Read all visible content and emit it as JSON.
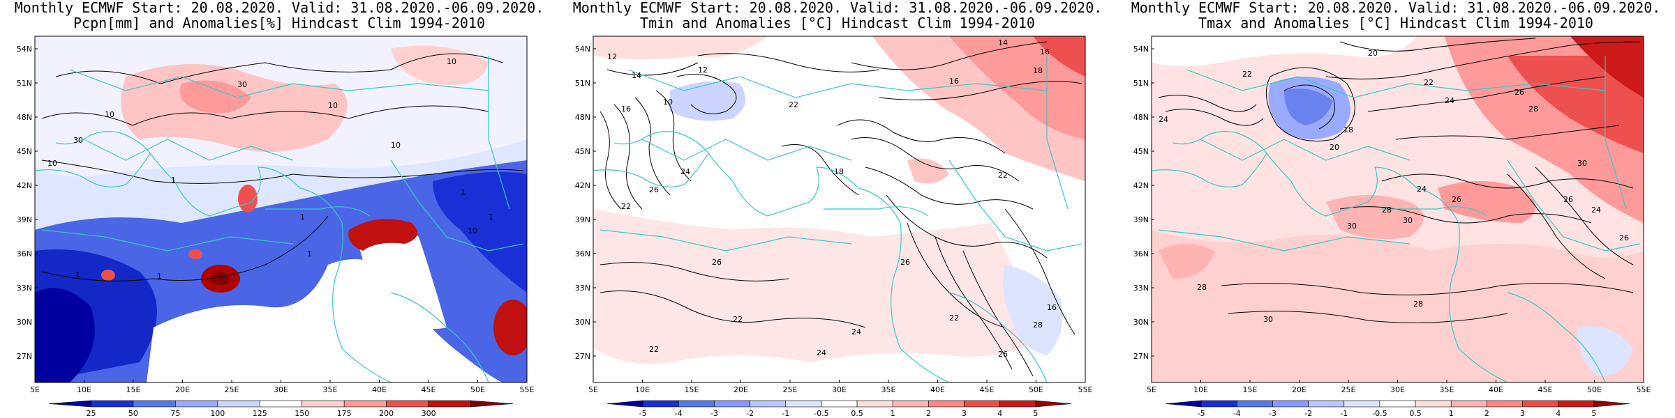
{
  "panels": [
    {
      "title_line1": "Monthly ECMWF Start: 20.08.2020. Valid: 31.08.2020.-06.09.2020.",
      "title_line2": "Pcpn[mm] and Anomalies[%] Hindcast Clim 1994-2010",
      "colorbar_labels": [
        "25",
        "50",
        "75",
        "100",
        "125",
        "150",
        "175",
        "200",
        "300"
      ],
      "colorbar_colors": [
        "#0000a0",
        "#1a2fd6",
        "#5577ee",
        "#99aaff",
        "#ccd6ff",
        "#ffffff",
        "#ffd0d0",
        "#ff9a9a",
        "#ee5050",
        "#c01010",
        "#800000"
      ],
      "contour_labels": [
        "10",
        "30",
        "10",
        "30",
        "10",
        "10",
        "10",
        "1",
        "1",
        "1",
        "1",
        "10",
        "1",
        "1",
        "1"
      ]
    },
    {
      "title_line1": "Monthly ECMWF Start: 20.08.2020. Valid: 31.08.2020.-06.09.2020.",
      "title_line2": "Tmin and Anomalies [°C] Hindcast Clim 1994-2010",
      "colorbar_labels": [
        "-5",
        "-4",
        "-3",
        "-2",
        "-1",
        "-0.5",
        "0.5",
        "1",
        "2",
        "3",
        "4",
        "5"
      ],
      "colorbar_colors": [
        "#0000a0",
        "#1a2fd6",
        "#5577ee",
        "#8899ff",
        "#bbc6ff",
        "#dde4ff",
        "#ffffff",
        "#ffdede",
        "#ffb4b4",
        "#ff8484",
        "#ee4c4c",
        "#cc1a1a",
        "#990000"
      ],
      "contour_labels": [
        "14",
        "16",
        "18",
        "12",
        "14",
        "16",
        "10",
        "12",
        "16",
        "22",
        "24",
        "26",
        "22",
        "26",
        "18",
        "26",
        "22",
        "24",
        "22",
        "24",
        "22",
        "26",
        "28",
        "16",
        "22"
      ]
    },
    {
      "title_line1": "Monthly ECMWF Start: 20.08.2020. Valid: 31.08.2020.-06.09.2020.",
      "title_line2": "Tmax and Anomalies [°C] Hindcast Clim 1994-2010",
      "colorbar_labels": [
        "-5",
        "-4",
        "-3",
        "-2",
        "-1",
        "-0.5",
        "0.5",
        "1",
        "2",
        "3",
        "4",
        "5"
      ],
      "colorbar_colors": [
        "#0000a0",
        "#1a2fd6",
        "#5577ee",
        "#8899ff",
        "#bbc6ff",
        "#dde4ff",
        "#ffffff",
        "#ffdede",
        "#ffb4b4",
        "#ff8484",
        "#ee4c4c",
        "#cc1a1a",
        "#990000"
      ],
      "contour_labels": [
        "20",
        "22",
        "24",
        "26",
        "28",
        "30",
        "24",
        "22",
        "20",
        "18",
        "26",
        "24",
        "28",
        "30",
        "26",
        "24",
        "26",
        "28",
        "30",
        "28",
        "30"
      ]
    }
  ],
  "lat_labels": [
    "54N",
    "51N",
    "48N",
    "45N",
    "42N",
    "39N",
    "36N",
    "33N",
    "30N",
    "27N"
  ],
  "lon_labels": [
    "5E",
    "10E",
    "15E",
    "20E",
    "25E",
    "30E",
    "35E",
    "40E",
    "45E",
    "50E",
    "55E"
  ],
  "colors": {
    "coast": "#35c8c8",
    "contour": "#000000",
    "border": "#000000"
  }
}
